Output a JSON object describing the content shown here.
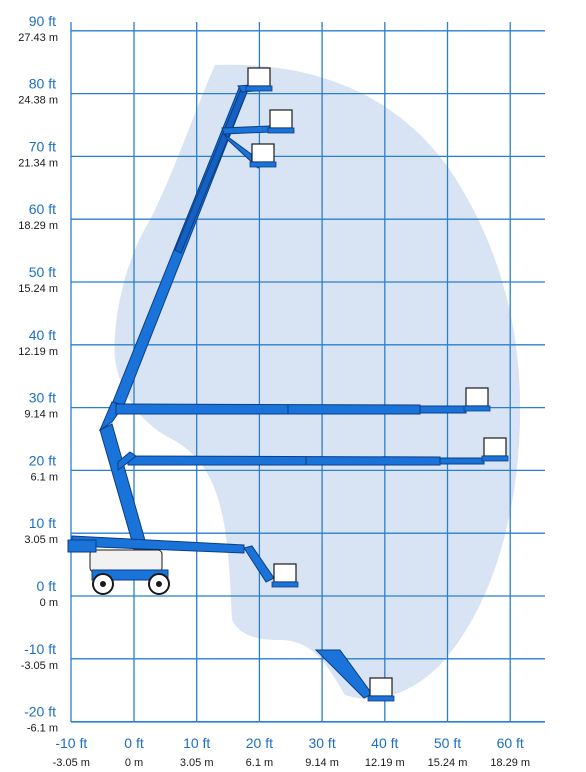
{
  "y_axis": {
    "ft_labels": [
      "90 ft",
      "80 ft",
      "70 ft",
      "60 ft",
      "50 ft",
      "40 ft",
      "30 ft",
      "20 ft",
      "10 ft",
      "0 ft",
      "-10 ft",
      "-20 ft"
    ],
    "m_labels": [
      "27.43 m",
      "24.38 m",
      "21.34 m",
      "18.29 m",
      "15.24 m",
      "12.19 m",
      "9.14 m",
      "6.1 m",
      "3.05 m",
      "0 m",
      "-3.05 m",
      "-6.1 m"
    ]
  },
  "x_axis": {
    "ft_labels": [
      "-10 ft",
      "0 ft",
      "10 ft",
      "20 ft",
      "30 ft",
      "40 ft",
      "50 ft",
      "60 ft"
    ],
    "m_labels": [
      "-3.05 m",
      "0 m",
      "3.05 m",
      "6.1 m",
      "9.14 m",
      "12.19 m",
      "15.24 m",
      "18.29 m"
    ]
  },
  "colors": {
    "envelope": "#d8e4f3",
    "grid": "#2a7fd0",
    "boom": "#1a73d9",
    "ft_text": "#1b6fc4",
    "m_text": "#1a1a1a"
  }
}
